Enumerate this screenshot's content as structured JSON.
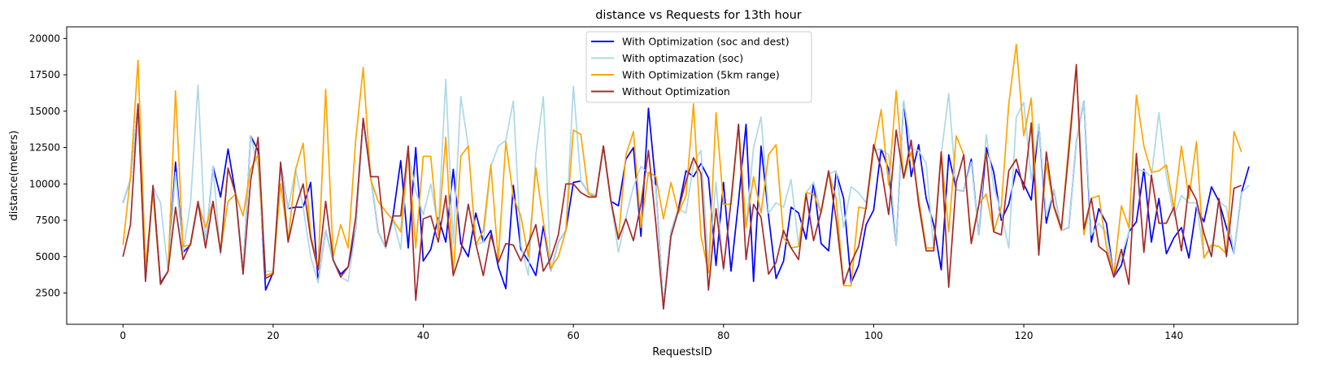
{
  "chart_data": {
    "type": "line",
    "title": "distance vs Requests for 13th hour",
    "xlabel": "RequestsID",
    "ylabel": "distance(meters)",
    "xlim": [
      -7.5,
      156.5
    ],
    "ylim": [
      350,
      20800
    ],
    "xticks": [
      0,
      20,
      40,
      60,
      80,
      100,
      120,
      140
    ],
    "yticks": [
      2500,
      5000,
      7500,
      10000,
      12500,
      15000,
      17500,
      20000
    ],
    "grid": false,
    "legend_position": "upper center",
    "series": [
      {
        "name": "With Optimization (soc and dest)",
        "color": "#0000ff",
        "values": [
          8700,
          10300,
          15400,
          3400,
          9800,
          3200,
          4000,
          11500,
          5300,
          5800,
          8700,
          5700,
          11200,
          9100,
          12400,
          9300,
          3900,
          13300,
          12300,
          2700,
          3900,
          11300,
          8300,
          8400,
          8400,
          10100,
          3300,
          6800,
          4700,
          3800,
          4300,
          6900,
          14500,
          10500,
          6700,
          5600,
          7900,
          11600,
          5600,
          12500,
          4700,
          5500,
          7700,
          6000,
          11000,
          5900,
          5000,
          8000,
          6000,
          6800,
          4300,
          2800,
          9900,
          5500,
          4700,
          3700,
          7100,
          4000,
          6000,
          6800,
          10100,
          10200,
          9400,
          9200,
          12600,
          8800,
          8500,
          11700,
          12500,
          6400,
          15200,
          9800,
          1500,
          6700,
          8300,
          10900,
          10500,
          11400,
          10400,
          4400,
          10100,
          4000,
          8800,
          14100,
          3300,
          12600,
          7800,
          3500,
          4700,
          8400,
          8000,
          6200,
          10100,
          5900,
          5400,
          10800,
          9000,
          3200,
          4400,
          7200,
          8200,
          12400,
          11000,
          5800,
          15700,
          10500,
          12700,
          9000,
          7200,
          4100,
          12000,
          9600,
          9500,
          11700,
          6500,
          12500,
          10800,
          7500,
          8600,
          11000,
          10000,
          8900,
          14100,
          7300,
          9600,
          6800,
          7000,
          12900,
          15700,
          6000,
          8300,
          7300,
          3600,
          4400,
          6700,
          7400,
          11000,
          6000,
          9000,
          5200,
          6300,
          7000,
          4900,
          8400,
          7400,
          9800,
          8800,
          7000,
          5200,
          9400,
          11200
        ]
      },
      {
        "name": "With optimazation (soc)",
        "color": "#add8e6",
        "values": [
          8700,
          10300,
          15400,
          3400,
          9800,
          8700,
          4000,
          10800,
          5300,
          8700,
          16800,
          5700,
          11200,
          5100,
          11000,
          9300,
          3900,
          13300,
          11200,
          4000,
          4000,
          11200,
          8300,
          11000,
          8400,
          5000,
          3200,
          6800,
          4700,
          3600,
          3300,
          6900,
          14300,
          10500,
          6700,
          5600,
          7500,
          5500,
          12300,
          9500,
          7900,
          10000,
          7000,
          17200,
          5900,
          16000,
          12600,
          5800,
          6000,
          11200,
          12600,
          13000,
          15700,
          5800,
          3700,
          12000,
          16000,
          4000,
          6000,
          6800,
          16700,
          10200,
          9400,
          9200,
          12600,
          8800,
          5300,
          7700,
          9800,
          11200,
          10700,
          9800,
          1500,
          6700,
          8300,
          8000,
          11400,
          12300,
          4300,
          10100,
          4000,
          8800,
          14100,
          7000,
          12500,
          14600,
          8000,
          8700,
          8400,
          10300,
          5800,
          9400,
          10100,
          8000,
          10700,
          10900,
          7000,
          9800,
          9400,
          8700,
          12300,
          12400,
          12000,
          5800,
          15700,
          12400,
          12300,
          11400,
          5500,
          12000,
          16200,
          9600,
          9500,
          11500,
          6500,
          13400,
          9800,
          8000,
          5600,
          14600,
          15600,
          10300,
          14100,
          7800,
          9600,
          6800,
          7000,
          12900,
          15700,
          6500,
          7300,
          6600,
          3600,
          5000,
          6700,
          11000,
          10900,
          10500,
          14900,
          10500,
          7800,
          9200,
          8700,
          8700,
          5000,
          5500,
          8800,
          8400,
          5200,
          9400,
          9900
        ]
      },
      {
        "name": "With Optimization (5km range)",
        "color": "#ffa500",
        "values": [
          5800,
          10500,
          18500,
          4400,
          9300,
          3100,
          4000,
          16400,
          5700,
          5800,
          8700,
          7000,
          8800,
          5400,
          8800,
          9300,
          7800,
          11000,
          12000,
          3700,
          3900,
          10000,
          6100,
          11000,
          12800,
          6500,
          4200,
          16500,
          5000,
          7200,
          5600,
          13000,
          18000,
          10300,
          8800,
          8100,
          7500,
          6700,
          12400,
          5600,
          11900,
          11900,
          6500,
          13200,
          3700,
          11900,
          12600,
          5800,
          6800,
          11300,
          4800,
          12900,
          9100,
          7800,
          5000,
          11100,
          7400,
          4200,
          5000,
          6800,
          13700,
          13400,
          9300,
          9100,
          12600,
          8900,
          6200,
          12000,
          13600,
          7000,
          10800,
          10500,
          7600,
          10100,
          8000,
          9200,
          15500,
          6400,
          3900,
          14900,
          8600,
          8600,
          14100,
          7000,
          10500,
          8000,
          12000,
          12700,
          6300,
          5600,
          5700,
          9400,
          9300,
          8000,
          10800,
          9000,
          3000,
          3000,
          8400,
          8300,
          12300,
          15100,
          9900,
          16400,
          10400,
          12200,
          9000,
          5600,
          5600,
          12200,
          6700,
          13300,
          12000,
          6000,
          8600,
          9300,
          6700,
          8400,
          15500,
          19600,
          13300,
          15900,
          5500,
          11400,
          8400,
          6800,
          12800,
          18000,
          6500,
          9000,
          9200,
          5700,
          3800,
          8500,
          7000,
          16100,
          12600,
          10800,
          10900,
          11300,
          8300,
          12600,
          9000,
          12900,
          4900,
          5800,
          5700,
          5200,
          13600,
          12200
        ]
      },
      {
        "name": "Without Optimization",
        "color": "#a52a2a",
        "values": [
          5000,
          7200,
          15500,
          3300,
          9900,
          3100,
          4000,
          8400,
          4800,
          5900,
          8800,
          5600,
          8800,
          5300,
          11100,
          9300,
          3800,
          10200,
          13200,
          3500,
          3800,
          11500,
          6000,
          8400,
          10000,
          6300,
          4100,
          8800,
          4800,
          3600,
          4300,
          7700,
          14500,
          10500,
          10500,
          5700,
          7800,
          7800,
          12600,
          2000,
          7600,
          7800,
          6000,
          9200,
          3700,
          5300,
          8600,
          5900,
          3700,
          6500,
          4600,
          5900,
          5800,
          4700,
          5900,
          7200,
          4000,
          4900,
          6500,
          10000,
          10000,
          9400,
          9100,
          9100,
          12600,
          8800,
          6200,
          7600,
          6100,
          8600,
          12300,
          7200,
          1400,
          6400,
          8200,
          10200,
          11800,
          10700,
          2700,
          8300,
          4200,
          8800,
          14100,
          4800,
          8600,
          7700,
          3800,
          4600,
          6800,
          5600,
          4800,
          9300,
          6100,
          8100,
          10900,
          7600,
          3100,
          4600,
          5700,
          8400,
          12700,
          11100,
          7900,
          13700,
          10400,
          13000,
          8600,
          5400,
          5400,
          12200,
          2900,
          10100,
          12000,
          5900,
          8500,
          12200,
          6700,
          6500,
          10900,
          11700,
          9600,
          14200,
          5100,
          12200,
          8500,
          6900,
          12200,
          18200,
          6900,
          9000,
          5700,
          5300,
          3600,
          5500,
          3100,
          12100,
          5300,
          10600,
          7300,
          7300,
          8400,
          5400,
          9900,
          8900,
          6600,
          5000,
          9000,
          5000,
          9700,
          9900
        ]
      }
    ]
  }
}
